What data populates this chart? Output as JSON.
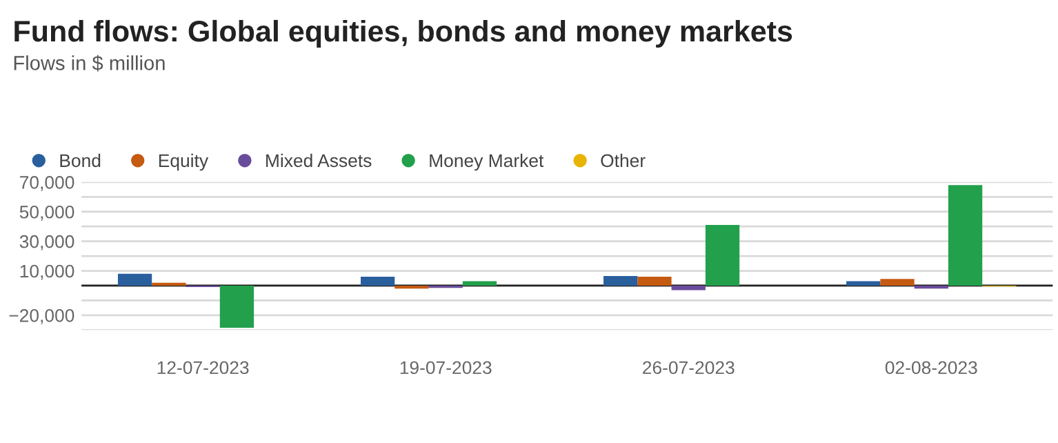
{
  "chart_data": {
    "type": "bar",
    "title": "Fund flows: Global equities, bonds and money markets",
    "subtitle": "Flows in $ million",
    "categories": [
      "12-07-2023",
      "19-07-2023",
      "26-07-2023",
      "02-08-2023"
    ],
    "series": [
      {
        "name": "Bond",
        "color": "#2a5f9e",
        "values": [
          8000,
          6000,
          6500,
          3000
        ]
      },
      {
        "name": "Equity",
        "color": "#c55a11",
        "values": [
          2000,
          -2000,
          6000,
          4500
        ]
      },
      {
        "name": "Mixed Assets",
        "color": "#6a4c9c",
        "values": [
          -1000,
          -1500,
          -3000,
          -2000
        ]
      },
      {
        "name": "Money Market",
        "color": "#22a04b",
        "values": [
          -28500,
          3000,
          41000,
          68000
        ]
      },
      {
        "name": "Other",
        "color": "#e8b400",
        "values": [
          0,
          0,
          0,
          -500
        ]
      }
    ],
    "ylim": [
      -30000,
      70000
    ],
    "yticks": [
      {
        "value": -30000,
        "label": null
      },
      {
        "value": -20000,
        "label": "−20,000"
      },
      {
        "value": -10000,
        "label": null
      },
      {
        "value": 0,
        "label": null
      },
      {
        "value": 10000,
        "label": "10,000"
      },
      {
        "value": 20000,
        "label": null
      },
      {
        "value": 30000,
        "label": "30,000"
      },
      {
        "value": 40000,
        "label": null
      },
      {
        "value": 50000,
        "label": "50,000"
      },
      {
        "value": 60000,
        "label": null
      },
      {
        "value": 70000,
        "label": "70,000"
      }
    ],
    "ref_lines": [
      {
        "axis": "y",
        "value": 0,
        "color": "#222222"
      }
    ],
    "grid": "y",
    "legend": "top left"
  }
}
